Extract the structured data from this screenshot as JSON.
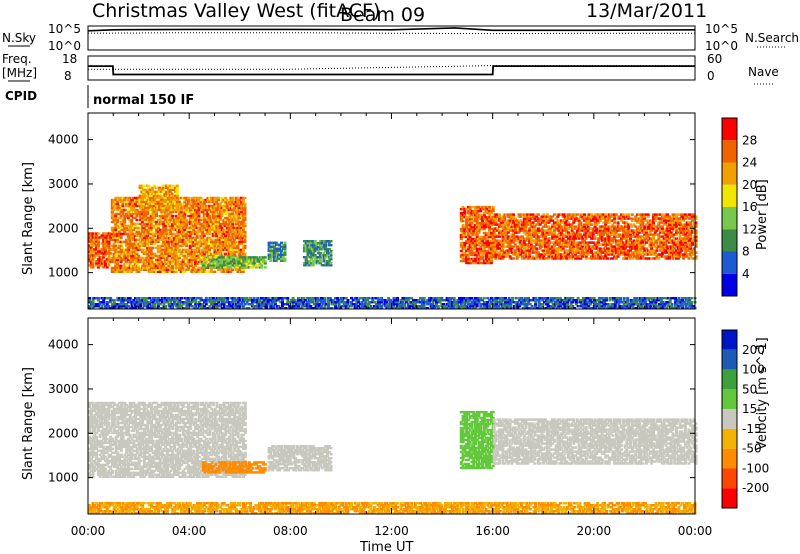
{
  "header": {
    "title": "Christmas Valley West (fitACF)",
    "beam": "Beam 09",
    "date": "13/Mar/2011"
  },
  "nsky_panel": {
    "left_label": "N.Sky",
    "right_label": "N.Search",
    "left_ticks": [
      "10^5",
      "10^0"
    ],
    "right_ticks": [
      "10^5",
      "10^0"
    ]
  },
  "freq_panel": {
    "left_label_1": "Freq.",
    "left_label_2": "[MHz]",
    "right_label": "Nave",
    "left_ticks": [
      "18",
      "8"
    ],
    "right_ticks": [
      "60",
      "0"
    ]
  },
  "cpid": {
    "label": "CPID",
    "value": "normal 150 IF"
  },
  "colors": {
    "power": [
      "#0000e6",
      "#1e5ad2",
      "#3c8c46",
      "#78c850",
      "#f0e600",
      "#f0a000",
      "#f06400",
      "#ff0000"
    ],
    "velocity": [
      "#ff0000",
      "#ff4600",
      "#ff8c00",
      "#f0b400",
      "#c8c8be",
      "#64c83c",
      "#3ca03c",
      "#1e5ab4",
      "#0014c8"
    ]
  },
  "chart_data": [
    {
      "type": "line",
      "panel": "N.Sky / N.Search",
      "x_range": [
        "00:00",
        "24:00"
      ],
      "series": [
        {
          "name": "N.Sky",
          "x": [
            "00:00",
            "01:00",
            "04:00",
            "08:00",
            "12:00",
            "14:30",
            "16:00",
            "20:00",
            "24:00"
          ],
          "y_log10": [
            4.0,
            4.2,
            4.3,
            4.3,
            4.2,
            4.6,
            4.1,
            4.1,
            4.2
          ]
        },
        {
          "name": "N.Search",
          "x": [
            "00:00",
            "04:00",
            "08:00",
            "12:00",
            "16:00",
            "20:00",
            "24:00"
          ],
          "y_log10": [
            3.5,
            3.6,
            3.6,
            3.5,
            3.4,
            3.5,
            3.5
          ]
        }
      ]
    },
    {
      "type": "line",
      "panel": "Freq. / Nave",
      "x_range": [
        "00:00",
        "24:00"
      ],
      "series": [
        {
          "name": "Freq.",
          "unit": "MHz",
          "x": [
            "00:00",
            "00:59",
            "01:00",
            "16:00",
            "16:01",
            "24:00"
          ],
          "y": [
            13.8,
            13.8,
            10.3,
            10.3,
            13.8,
            13.8
          ]
        },
        {
          "name": "Nave",
          "x": [
            "00:00",
            "01:00",
            "08:00",
            "16:00",
            "24:00"
          ],
          "y": [
            27,
            27,
            27,
            36,
            36
          ]
        }
      ]
    },
    {
      "type": "heatmap",
      "panel": "Power",
      "ylabel": "Slant Range [km]",
      "x_range": [
        "00:00",
        "24:00"
      ],
      "ylim": [
        180,
        4600
      ],
      "x_ticks": [
        "00:00",
        "04:00",
        "08:00",
        "12:00",
        "16:00",
        "20:00",
        "00:00"
      ],
      "y_ticks": [
        "1000",
        "2000",
        "3000",
        "4000"
      ],
      "colorbar_label": "Power [dB]",
      "colorbar_ticks": [
        "4",
        "8",
        "12",
        "16",
        "20",
        "24",
        "28"
      ],
      "regions": [
        {
          "t": [
            0.0,
            0.9
          ],
          "range_km": [
            1100,
            1900
          ],
          "value_dB": 26
        },
        {
          "t": [
            0.9,
            6.2
          ],
          "range_km": [
            1000,
            2700
          ],
          "value_dB": 24
        },
        {
          "t": [
            2.0,
            3.5
          ],
          "range_km": [
            2400,
            2950
          ],
          "value_dB": 22
        },
        {
          "t": [
            4.5,
            7.0
          ],
          "range_km": [
            1100,
            1350
          ],
          "value_dB": 13
        },
        {
          "t": [
            7.1,
            7.8
          ],
          "range_km": [
            1250,
            1700
          ],
          "value_dB": 10
        },
        {
          "t": [
            8.5,
            9.6
          ],
          "range_km": [
            1150,
            1700
          ],
          "value_dB": 10
        },
        {
          "t": [
            14.7,
            16.0
          ],
          "range_km": [
            1200,
            2500
          ],
          "value_dB": 26
        },
        {
          "t": [
            16.0,
            24.0
          ],
          "range_km": [
            1300,
            2300
          ],
          "value_dB": 26
        },
        {
          "t": [
            0.0,
            24.0
          ],
          "range_km": [
            180,
            450
          ],
          "value_dB": 6
        }
      ]
    },
    {
      "type": "heatmap",
      "panel": "Velocity",
      "ylabel": "Slant Range [km]",
      "xlabel": "Time UT",
      "x_range": [
        "00:00",
        "24:00"
      ],
      "ylim": [
        180,
        4600
      ],
      "x_ticks": [
        "00:00",
        "04:00",
        "08:00",
        "12:00",
        "16:00",
        "20:00",
        "00:00"
      ],
      "y_ticks": [
        "1000",
        "2000",
        "3000",
        "4000"
      ],
      "colorbar_label": "Velocity [m s^-1]",
      "colorbar_ticks": [
        "200",
        "100",
        "50",
        "15",
        "-15",
        "-50",
        "-100",
        "-200"
      ],
      "regions": [
        {
          "t": [
            0.0,
            6.2
          ],
          "range_km": [
            1000,
            2700
          ],
          "value_ms": 0
        },
        {
          "t": [
            4.5,
            7.0
          ],
          "range_km": [
            1100,
            1350
          ],
          "value_ms": -60
        },
        {
          "t": [
            7.1,
            9.6
          ],
          "range_km": [
            1150,
            1700
          ],
          "value_ms": 0
        },
        {
          "t": [
            14.7,
            16.0
          ],
          "range_km": [
            1200,
            2500
          ],
          "value_ms": 20
        },
        {
          "t": [
            16.0,
            24.0
          ],
          "range_km": [
            1300,
            2300
          ],
          "value_ms": 0
        },
        {
          "t": [
            0.0,
            24.0
          ],
          "range_km": [
            180,
            450
          ],
          "value_ms": -50
        }
      ]
    }
  ]
}
